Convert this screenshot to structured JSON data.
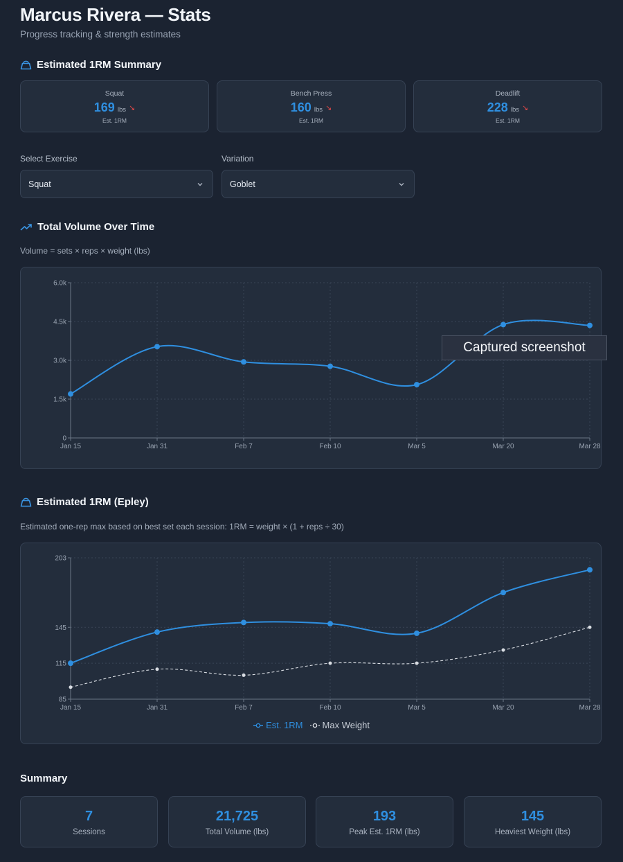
{
  "header": {
    "title": "Marcus Rivera — Stats",
    "subtitle": "Progress tracking & strength estimates"
  },
  "one_rm_summary": {
    "title": "Estimated 1RM Summary",
    "icon": "kettlebell-icon",
    "cards": [
      {
        "name": "Squat",
        "value": "169",
        "unit": "lbs",
        "trend": "down",
        "caption": "Est. 1RM"
      },
      {
        "name": "Bench Press",
        "value": "160",
        "unit": "lbs",
        "trend": "down",
        "caption": "Est. 1RM"
      },
      {
        "name": "Deadlift",
        "value": "228",
        "unit": "lbs",
        "trend": "down",
        "caption": "Est. 1RM"
      }
    ]
  },
  "filters": {
    "exercise_label": "Select Exercise",
    "exercise_value": "Squat",
    "variation_label": "Variation",
    "variation_value": "Goblet"
  },
  "volume_section": {
    "title": "Total Volume Over Time",
    "icon": "trending-up-icon",
    "note": "Volume = sets × reps × weight (lbs)"
  },
  "epley_section": {
    "title": "Estimated 1RM (Epley)",
    "icon": "kettlebell-icon",
    "note": "Estimated one-rep max based on best set each session: 1RM = weight × (1 + reps ÷ 30)"
  },
  "summary": {
    "title": "Summary",
    "stats": [
      {
        "value": "7",
        "label": "Sessions"
      },
      {
        "value": "21,725",
        "label": "Total Volume (lbs)"
      },
      {
        "value": "193",
        "label": "Peak Est. 1RM (lbs)"
      },
      {
        "value": "145",
        "label": "Heaviest Weight (lbs)"
      }
    ]
  },
  "tooltip": {
    "text": "Captured screenshot"
  },
  "colors": {
    "accent": "#2f8fe0",
    "trend_down": "#e04848",
    "max_weight": "#d9dde3"
  },
  "chart_data": [
    {
      "type": "line",
      "categories": [
        "Jan 15",
        "Jan 31",
        "Feb 7",
        "Feb 10",
        "Mar 5",
        "Mar 20",
        "Mar 28"
      ],
      "series": [
        {
          "values": [
            1700,
            3530,
            2940,
            2770,
            2060,
            4380,
            4350
          ]
        }
      ],
      "ylim": [
        0,
        6000
      ],
      "yticks": [
        0,
        1500,
        3000,
        4500,
        6000
      ],
      "ytick_labels": [
        "0",
        "1.5k",
        "3.0k",
        "4.5k",
        "6.0k"
      ],
      "grid": true
    },
    {
      "type": "line",
      "categories": [
        "Jan 15",
        "Jan 31",
        "Feb 7",
        "Feb 10",
        "Mar 5",
        "Mar 20",
        "Mar 28"
      ],
      "series": [
        {
          "name": "Est. 1RM",
          "values": [
            115,
            141,
            149,
            148,
            140,
            174,
            193
          ]
        },
        {
          "name": "Max Weight",
          "values": [
            95,
            110,
            105,
            115,
            115,
            126,
            145
          ]
        }
      ],
      "ylim": [
        85,
        203
      ],
      "yticks": [
        85,
        115,
        145,
        203
      ],
      "ytick_labels": [
        "85",
        "115",
        "145",
        "203"
      ],
      "grid": true,
      "legend": "bottom-center"
    }
  ]
}
